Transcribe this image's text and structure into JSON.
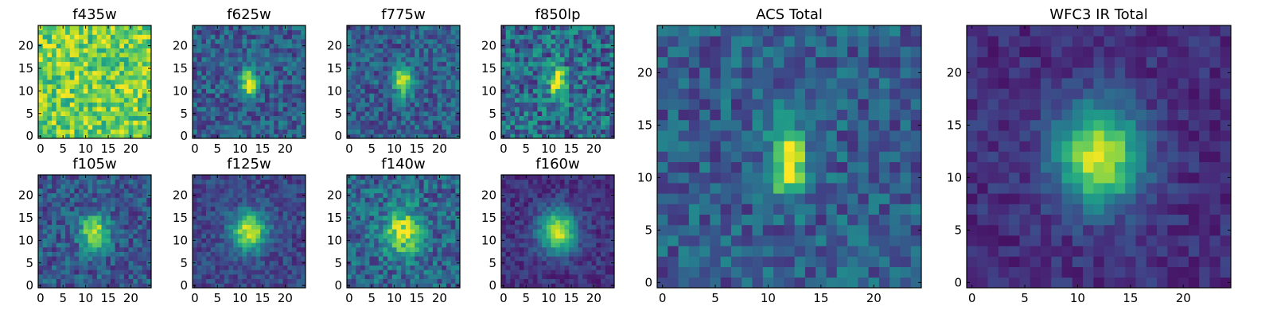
{
  "chart_data": [
    {
      "type": "heatmap",
      "title": "f435w",
      "grid_size": 25,
      "xlim": [
        0,
        24
      ],
      "ylim": [
        0,
        24
      ],
      "xticks": [
        "0",
        "5",
        "10",
        "15",
        "20"
      ],
      "yticks": [
        "0",
        "5",
        "10",
        "15",
        "20"
      ],
      "colormap": "viridis",
      "source_peak": [
        12,
        12
      ],
      "source_width": [
        1.2,
        2.5
      ],
      "source_amp": 0.0,
      "base": 0.78,
      "noise": 0.22,
      "seed": 11
    },
    {
      "type": "heatmap",
      "title": "f625w",
      "grid_size": 25,
      "xlim": [
        0,
        24
      ],
      "ylim": [
        0,
        24
      ],
      "xticks": [
        "0",
        "5",
        "10",
        "15",
        "20"
      ],
      "yticks": [
        "0",
        "5",
        "10",
        "15",
        "20"
      ],
      "colormap": "viridis",
      "source_peak": [
        12,
        12
      ],
      "source_width": [
        1.1,
        2.2
      ],
      "source_amp": 0.75,
      "base": 0.3,
      "noise": 0.18,
      "seed": 22
    },
    {
      "type": "heatmap",
      "title": "f775w",
      "grid_size": 25,
      "xlim": [
        0,
        24
      ],
      "ylim": [
        0,
        24
      ],
      "xticks": [
        "0",
        "5",
        "10",
        "15",
        "20"
      ],
      "yticks": [
        "0",
        "5",
        "10",
        "15",
        "20"
      ],
      "colormap": "viridis",
      "source_peak": [
        12,
        12
      ],
      "source_width": [
        1.3,
        2.2
      ],
      "source_amp": 0.72,
      "base": 0.3,
      "noise": 0.18,
      "seed": 33
    },
    {
      "type": "heatmap",
      "title": "f850lp",
      "grid_size": 25,
      "xlim": [
        0,
        24
      ],
      "ylim": [
        0,
        24
      ],
      "xticks": [
        "0",
        "5",
        "10",
        "15",
        "20"
      ],
      "yticks": [
        "0",
        "5",
        "10",
        "15",
        "20"
      ],
      "colormap": "viridis",
      "source_peak": [
        12,
        12
      ],
      "source_width": [
        1.4,
        2.4
      ],
      "source_amp": 0.6,
      "base": 0.35,
      "noise": 0.25,
      "seed": 44
    },
    {
      "type": "heatmap",
      "title": "f105w",
      "grid_size": 25,
      "xlim": [
        0,
        24
      ],
      "ylim": [
        0,
        24
      ],
      "xticks": [
        "0",
        "5",
        "10",
        "15",
        "20"
      ],
      "yticks": [
        "0",
        "5",
        "10",
        "15",
        "20"
      ],
      "colormap": "viridis",
      "source_peak": [
        12,
        12
      ],
      "source_width": [
        2.2,
        2.6
      ],
      "source_amp": 0.65,
      "base": 0.28,
      "noise": 0.17,
      "seed": 55
    },
    {
      "type": "heatmap",
      "title": "f125w",
      "grid_size": 25,
      "xlim": [
        0,
        24
      ],
      "ylim": [
        0,
        24
      ],
      "xticks": [
        "0",
        "5",
        "10",
        "15",
        "20"
      ],
      "yticks": [
        "0",
        "5",
        "10",
        "15",
        "20"
      ],
      "colormap": "viridis",
      "source_peak": [
        12,
        12
      ],
      "source_width": [
        2.6,
        3.0
      ],
      "source_amp": 0.72,
      "base": 0.22,
      "noise": 0.12,
      "seed": 66
    },
    {
      "type": "heatmap",
      "title": "f140w",
      "grid_size": 25,
      "xlim": [
        0,
        24
      ],
      "ylim": [
        0,
        24
      ],
      "xticks": [
        "0",
        "5",
        "10",
        "15",
        "20"
      ],
      "yticks": [
        "0",
        "5",
        "10",
        "15",
        "20"
      ],
      "colormap": "viridis",
      "source_peak": [
        12,
        12
      ],
      "source_width": [
        3.0,
        3.4
      ],
      "source_amp": 0.6,
      "base": 0.32,
      "noise": 0.2,
      "seed": 77
    },
    {
      "type": "heatmap",
      "title": "f160w",
      "grid_size": 25,
      "xlim": [
        0,
        24
      ],
      "ylim": [
        0,
        24
      ],
      "xticks": [
        "0",
        "5",
        "10",
        "15",
        "20"
      ],
      "yticks": [
        "0",
        "5",
        "10",
        "15",
        "20"
      ],
      "colormap": "viridis",
      "source_peak": [
        12,
        12
      ],
      "source_width": [
        2.8,
        3.3
      ],
      "source_amp": 0.78,
      "base": 0.15,
      "noise": 0.1,
      "seed": 88
    },
    {
      "type": "heatmap",
      "title": "ACS Total",
      "grid_size": 25,
      "xlim": [
        0,
        24
      ],
      "ylim": [
        0,
        24
      ],
      "xticks": [
        "0",
        "5",
        "10",
        "15",
        "20"
      ],
      "yticks": [
        "0",
        "5",
        "10",
        "15",
        "20"
      ],
      "colormap": "viridis",
      "source_peak": [
        12,
        11.5
      ],
      "source_width": [
        1.2,
        2.4
      ],
      "source_amp": 0.75,
      "base": 0.3,
      "noise": 0.17,
      "seed": 99
    },
    {
      "type": "heatmap",
      "title": "WFC3 IR Total",
      "grid_size": 25,
      "xlim": [
        0,
        24
      ],
      "ylim": [
        0,
        24
      ],
      "xticks": [
        "0",
        "5",
        "10",
        "15",
        "20"
      ],
      "yticks": [
        "0",
        "5",
        "10",
        "15",
        "20"
      ],
      "colormap": "viridis",
      "source_peak": [
        12,
        12
      ],
      "source_width": [
        2.8,
        3.3
      ],
      "source_amp": 0.8,
      "base": 0.14,
      "noise": 0.09,
      "seed": 111
    }
  ]
}
